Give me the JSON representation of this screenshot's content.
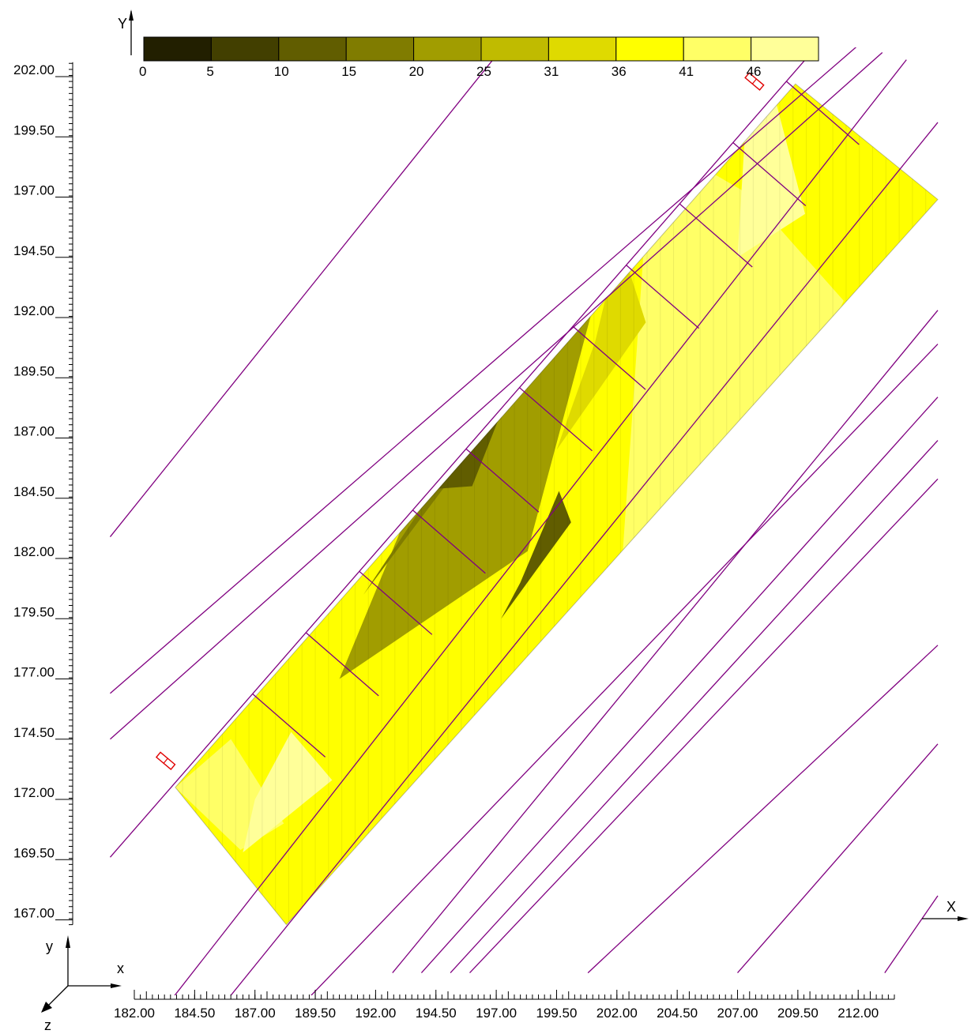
{
  "chart_data": {
    "type": "heatmap",
    "title": "",
    "xlabel": "X",
    "ylabel": "Y",
    "x_ticks": [
      "182.00",
      "184.50",
      "187.00",
      "189.50",
      "192.00",
      "194.50",
      "197.00",
      "199.50",
      "202.00",
      "204.50",
      "207.00",
      "209.50",
      "212.00"
    ],
    "y_ticks": [
      "202.00",
      "199.50",
      "197.00",
      "194.50",
      "192.00",
      "189.50",
      "187.00",
      "184.50",
      "182.00",
      "179.50",
      "177.00",
      "174.50",
      "172.00",
      "169.50",
      "167.00"
    ],
    "xlim": [
      182.0,
      213.5
    ],
    "ylim": [
      166.8,
      202.6
    ],
    "legend": {
      "placement": "top",
      "labels": [
        "0",
        "5",
        "10",
        "15",
        "20",
        "25",
        "31",
        "36",
        "41",
        "46"
      ],
      "colors": [
        "#221f00",
        "#423f00",
        "#615d00",
        "#807c00",
        "#a19d00",
        "#c0bb00",
        "#dfda00",
        "#ffff00",
        "#ffff66",
        "#ffff99"
      ]
    },
    "surface": {
      "corners": [
        [
          188.3,
          166.8
        ],
        [
          183.7,
          172.5
        ],
        [
          209.4,
          201.7
        ],
        [
          215.3,
          196.9
        ]
      ],
      "zones": [
        {
          "level": "41",
          "pts": [
            [
              201.5,
              171.5
            ],
            [
              211.4,
              192.7
            ],
            [
              207.5,
              197.1
            ],
            [
              205.1,
              198.5
            ],
            [
              203.2,
              196.1
            ]
          ]
        },
        {
          "level": "46",
          "pts": [
            [
              207.0,
              194.5
            ],
            [
              209.8,
              196.3
            ],
            [
              208.5,
              201.3
            ],
            [
              207.3,
              199.5
            ]
          ]
        },
        {
          "level": "31",
          "pts": [
            [
              199.5,
              186.5
            ],
            [
              203.2,
              191.8
            ],
            [
              202.1,
              195.2
            ],
            [
              201.1,
              191.0
            ]
          ]
        },
        {
          "level": "20",
          "pts": [
            [
              190.5,
              177.0
            ],
            [
              198.3,
              182.3
            ],
            [
              201.3,
              193.5
            ],
            [
              194.0,
              185.5
            ]
          ]
        },
        {
          "level": "15",
          "pts": [
            [
              191.5,
              180.5
            ],
            [
              196.0,
              186.5
            ],
            [
              199.5,
              193.0
            ],
            [
              196.5,
              188.0
            ]
          ]
        },
        {
          "level": "10",
          "pts": [
            [
              193.3,
              184.8
            ],
            [
              195.9,
              186.8
            ],
            [
              197.3,
              188.3
            ],
            [
              196.0,
              185.0
            ]
          ]
        },
        {
          "level": "10",
          "pts": [
            [
              197.2,
              179.5
            ],
            [
              200.1,
              183.5
            ],
            [
              199.6,
              184.8
            ],
            [
              198.0,
              181.0
            ]
          ]
        },
        {
          "level": "41",
          "pts": [
            [
              183.7,
              172.5
            ],
            [
              186.4,
              169.9
            ],
            [
              188.2,
              171.0
            ],
            [
              186.0,
              174.5
            ]
          ]
        },
        {
          "level": "46",
          "pts": [
            [
              186.5,
              169.8
            ],
            [
              190.2,
              172.8
            ],
            [
              188.5,
              174.8
            ],
            [
              187.0,
              172.0
            ]
          ]
        }
      ]
    },
    "site_lines": [
      [
        [
          183.0,
          163.0
        ],
        [
          214.0,
          202.7
        ]
      ],
      [
        [
          181.0,
          169.6
        ],
        [
          210.5,
          203.5
        ]
      ],
      [
        [
          181.0,
          174.5
        ],
        [
          213.0,
          203.0
        ]
      ],
      [
        [
          181.0,
          176.4
        ],
        [
          212.0,
          203.3
        ]
      ],
      [
        [
          181.0,
          182.9
        ],
        [
          197.5,
          203.5
        ]
      ],
      [
        [
          185.3,
          163.0
        ],
        [
          215.3,
          200.1
        ]
      ],
      [
        [
          188.5,
          163.0
        ],
        [
          215.3,
          190.9
        ]
      ],
      [
        [
          192.7,
          164.8
        ],
        [
          215.3,
          192.3
        ]
      ],
      [
        [
          193.9,
          164.8
        ],
        [
          215.3,
          188.7
        ]
      ],
      [
        [
          195.1,
          164.8
        ],
        [
          215.3,
          186.9
        ]
      ],
      [
        [
          195.9,
          164.8
        ],
        [
          215.3,
          185.3
        ]
      ],
      [
        [
          200.8,
          164.8
        ],
        [
          215.3,
          178.4
        ]
      ],
      [
        [
          207.0,
          164.8
        ],
        [
          215.3,
          174.3
        ]
      ],
      [
        [
          213.1,
          164.8
        ],
        [
          215.3,
          168.0
        ]
      ]
    ],
    "markers": [
      [
        183.3,
        173.6
      ],
      [
        207.7,
        201.8
      ]
    ]
  }
}
